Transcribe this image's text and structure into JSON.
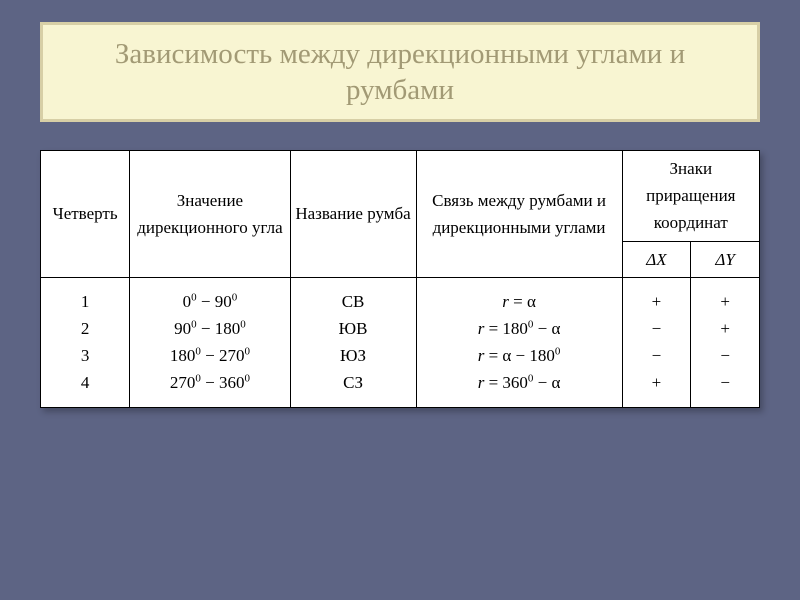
{
  "title": "Зависимость между дирекционными углами и румбами",
  "headers": {
    "quarter": "Четверть",
    "angle_value": "Значение дирекционного угла",
    "rumb_name": "Название румба",
    "relation": "Связь между румбами и дирекционными углами",
    "signs": "Знаки приращения координат",
    "dx": "ΔX",
    "dy": "ΔY"
  },
  "rows": [
    {
      "q": "1",
      "angle_html": "0<sup class='sup'>0</sup> − 90<sup class='sup'>0</sup>",
      "rumb": "СВ",
      "rel_html": "<span class='ital'>r</span> = α",
      "dx": "+",
      "dy": "+"
    },
    {
      "q": "2",
      "angle_html": "90<sup class='sup'>0</sup> − 180<sup class='sup'>0</sup>",
      "rumb": "ЮВ",
      "rel_html": "<span class='ital'>r</span> = 180<sup class='sup'>0</sup> − α",
      "dx": "−",
      "dy": "+"
    },
    {
      "q": "3",
      "angle_html": "180<sup class='sup'>0</sup> − 270<sup class='sup'>0</sup>",
      "rumb": "ЮЗ",
      "rel_html": "<span class='ital'>r</span> = α − 180<sup class='sup'>0</sup>",
      "dx": "−",
      "dy": "−"
    },
    {
      "q": "4",
      "angle_html": "270<sup class='sup'>0</sup> − 360<sup class='sup'>0</sup>",
      "rumb": "СЗ",
      "rel_html": "<span class='ital'>r</span> = 360<sup class='sup'>0</sup> − α",
      "dx": "+",
      "dy": "−"
    }
  ],
  "style": {
    "page_bg": "#5d6484",
    "title_bg": "#f8f5d2",
    "title_border": "#d7cfa6",
    "title_color": "#a29a75",
    "table_bg": "#ffffff",
    "border_color": "#000000",
    "title_fontsize": 29,
    "header_fontsize": 17,
    "cell_fontsize": 17
  }
}
